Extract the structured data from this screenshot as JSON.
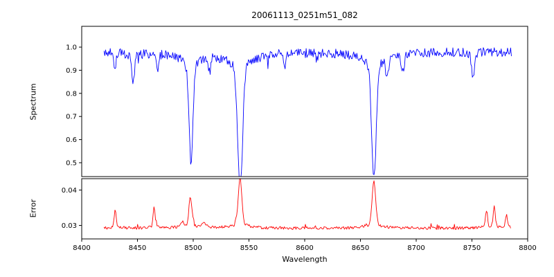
{
  "figure": {
    "title": "20061113_0251m51_082",
    "xlabel": "Wavelength",
    "background": "#ffffff",
    "xticks": [
      8400,
      8450,
      8500,
      8550,
      8600,
      8650,
      8700,
      8750,
      8800
    ],
    "xtick_labels": [
      "8400",
      "8450",
      "8500",
      "8550",
      "8600",
      "8650",
      "8700",
      "8750",
      "8800"
    ]
  },
  "chart_data": [
    {
      "type": "line",
      "name": "spectrum",
      "panel": "top",
      "ylabel": "Spectrum",
      "color": "#0000ff",
      "xlim": [
        8400,
        8800
      ],
      "ylim": [
        0.44,
        1.09
      ],
      "x_range": [
        8420,
        8786
      ],
      "sample_step": 0.7,
      "yticks": [
        0.5,
        0.6,
        0.7,
        0.8,
        0.9,
        1.0
      ],
      "ytick_labels": [
        "0.5",
        "0.6",
        "0.7",
        "0.8",
        "0.9",
        "1.0"
      ],
      "continuum": 0.98,
      "noise_amplitude": 0.02,
      "absorption_lines": [
        {
          "center": 8430,
          "depth": 0.05,
          "width": 1.2,
          "wing": 0
        },
        {
          "center": 8446,
          "depth": 0.1,
          "width": 1.5,
          "wing": 0.01
        },
        {
          "center": 8468,
          "depth": 0.06,
          "width": 1.3,
          "wing": 0
        },
        {
          "center": 8498.0,
          "depth": 0.4,
          "width": 1.8,
          "wing": 0.05
        },
        {
          "center": 8514,
          "depth": 0.05,
          "width": 1.2,
          "wing": 0
        },
        {
          "center": 8542.1,
          "depth": 0.52,
          "width": 2.2,
          "wing": 0.06
        },
        {
          "center": 8582,
          "depth": 0.05,
          "width": 1.2,
          "wing": 0
        },
        {
          "center": 8662.1,
          "depth": 0.49,
          "width": 2.0,
          "wing": 0.06
        },
        {
          "center": 8674,
          "depth": 0.08,
          "width": 1.3,
          "wing": 0
        },
        {
          "center": 8688,
          "depth": 0.07,
          "width": 1.3,
          "wing": 0
        },
        {
          "center": 8751,
          "depth": 0.12,
          "width": 1.4,
          "wing": 0
        }
      ]
    },
    {
      "type": "line",
      "name": "error",
      "panel": "bottom",
      "ylabel": "Error",
      "color": "#ff0000",
      "xlim": [
        8400,
        8800
      ],
      "ylim": [
        0.0262,
        0.0432
      ],
      "x_range": [
        8420,
        8785
      ],
      "sample_step": 0.7,
      "yticks": [
        0.03,
        0.04
      ],
      "ytick_labels": [
        "0.03",
        "0.04"
      ],
      "baseline": 0.0292,
      "noise_amplitude": 0.0004,
      "spikes": [
        {
          "center": 8430,
          "height": 0.0045,
          "width": 0.9
        },
        {
          "center": 8465,
          "height": 0.0052,
          "width": 0.9
        },
        {
          "center": 8490,
          "height": 0.0015,
          "width": 1.5
        },
        {
          "center": 8497.5,
          "height": 0.008,
          "width": 1.3
        },
        {
          "center": 8510,
          "height": 0.0012,
          "width": 1.5
        },
        {
          "center": 8542,
          "height": 0.0128,
          "width": 1.6
        },
        {
          "center": 8662,
          "height": 0.012,
          "width": 1.6
        },
        {
          "center": 8763,
          "height": 0.004,
          "width": 0.9
        },
        {
          "center": 8770,
          "height": 0.0056,
          "width": 0.9
        },
        {
          "center": 8781,
          "height": 0.0034,
          "width": 0.9
        }
      ]
    }
  ]
}
